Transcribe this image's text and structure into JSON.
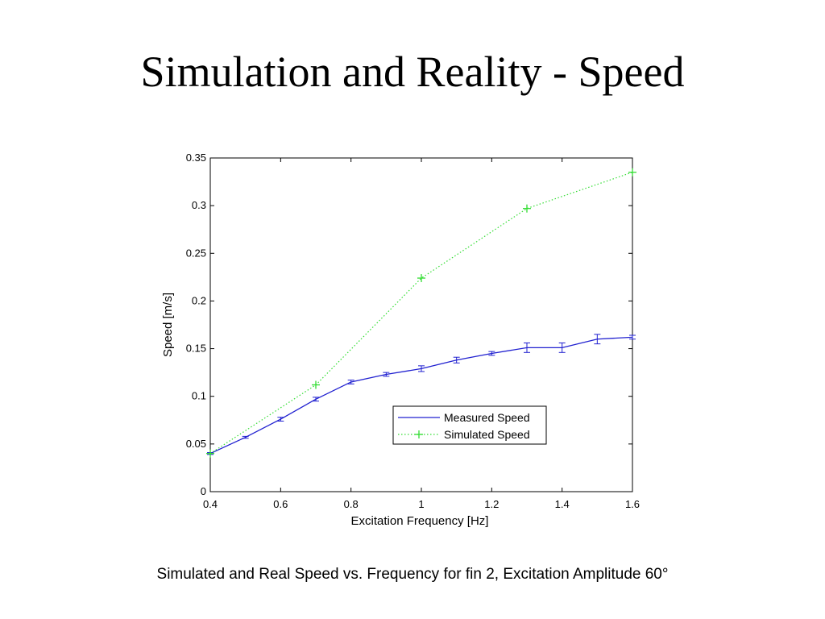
{
  "slide": {
    "title": "Simulation and Reality - Speed",
    "caption": "Simulated and Real Speed vs. Frequency for fin 2, Excitation Amplitude 60°"
  },
  "chart_data": {
    "type": "line",
    "xlabel": "Excitation Frequency [Hz]",
    "ylabel": "Speed [m/s]",
    "xlim": [
      0.4,
      1.6
    ],
    "ylim": [
      0,
      0.35
    ],
    "xticks": [
      "0.4",
      "0.6",
      "0.8",
      "1",
      "1.2",
      "1.4",
      "1.6"
    ],
    "yticks": [
      "0",
      "0.05",
      "0.1",
      "0.15",
      "0.2",
      "0.25",
      "0.3",
      "0.35"
    ],
    "grid": false,
    "legend_position": "bottom-right",
    "series": [
      {
        "name": "Measured Speed",
        "color": "#2020d0",
        "style": "solid-with-errorbars",
        "x": [
          0.4,
          0.5,
          0.6,
          0.7,
          0.8,
          0.9,
          1.0,
          1.1,
          1.2,
          1.3,
          1.4,
          1.5,
          1.6
        ],
        "y": [
          0.04,
          0.057,
          0.076,
          0.097,
          0.115,
          0.123,
          0.129,
          0.138,
          0.145,
          0.151,
          0.151,
          0.16,
          0.162
        ],
        "err": [
          0.001,
          0.001,
          0.002,
          0.002,
          0.002,
          0.002,
          0.003,
          0.003,
          0.002,
          0.005,
          0.005,
          0.005,
          0.002
        ]
      },
      {
        "name": "Simulated Speed",
        "color": "#33dd33",
        "style": "dotted-plus-markers",
        "x": [
          0.4,
          0.7,
          1.0,
          1.3,
          1.6
        ],
        "y": [
          0.04,
          0.112,
          0.224,
          0.297,
          0.335
        ]
      }
    ]
  }
}
